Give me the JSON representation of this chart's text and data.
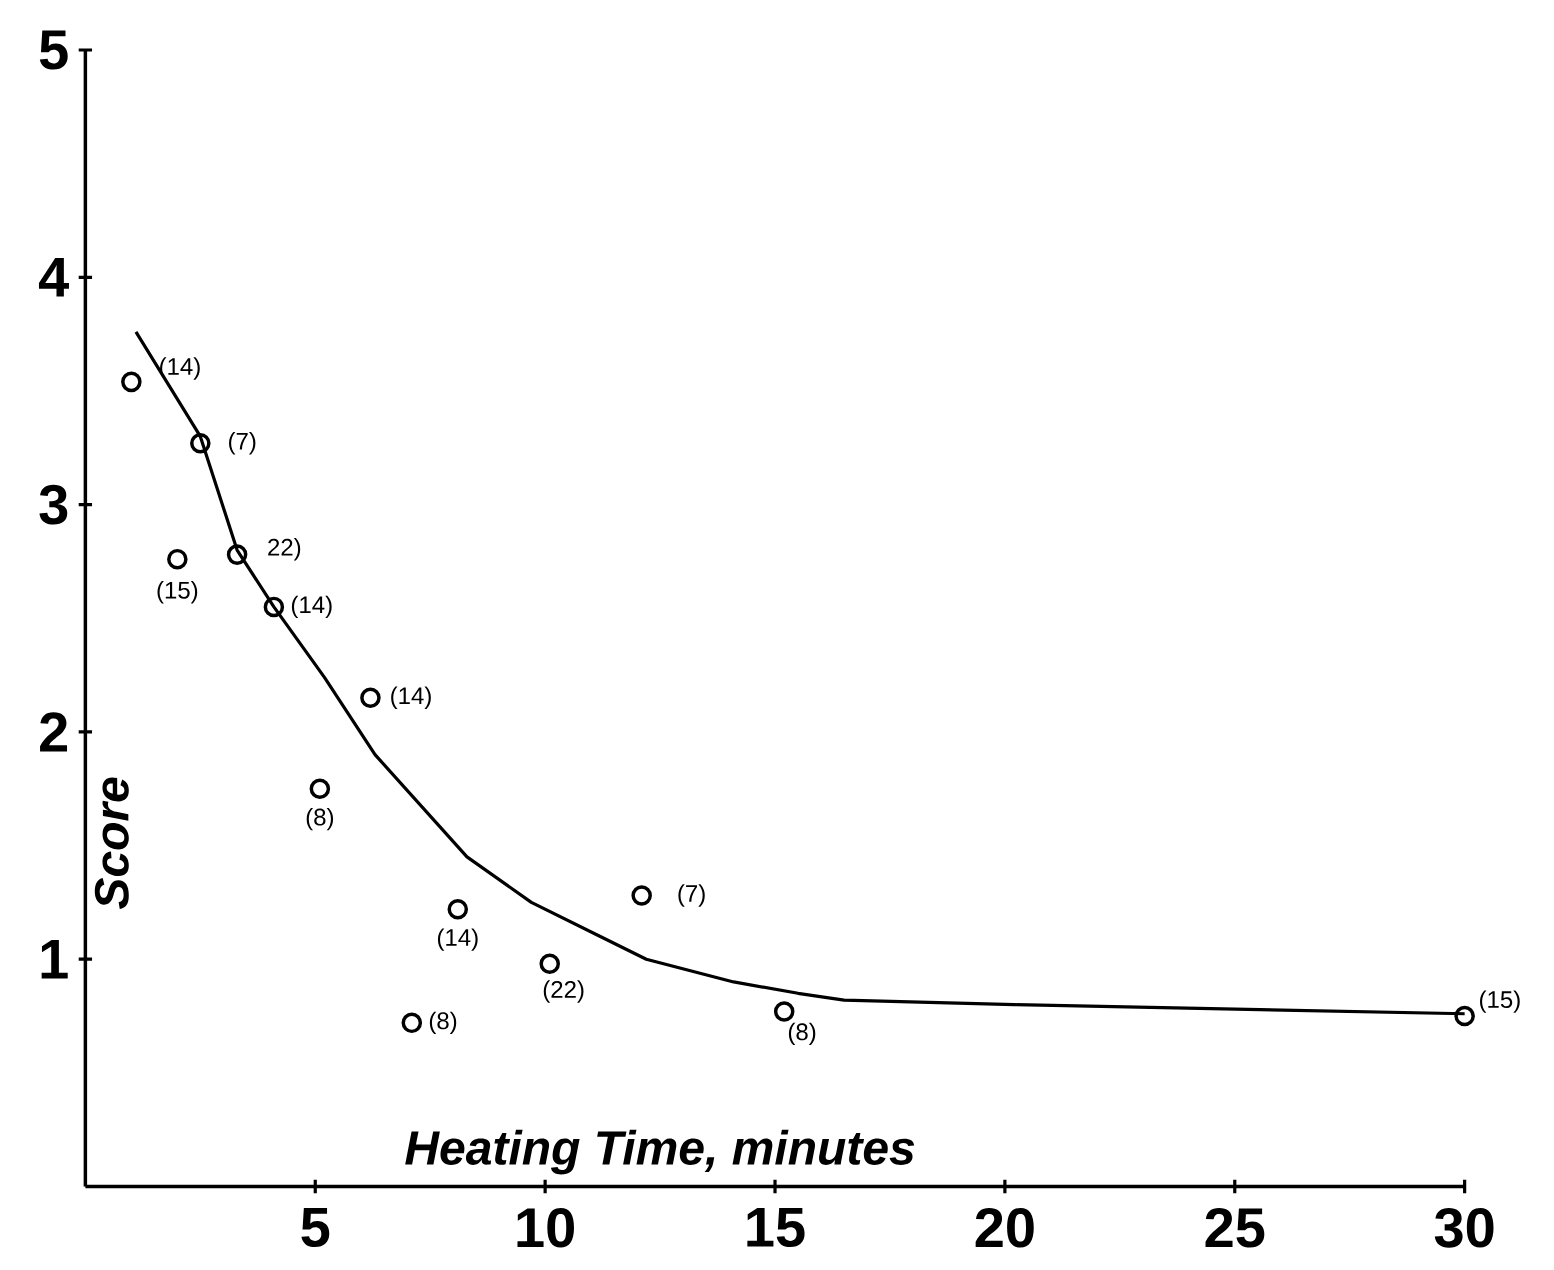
{
  "chart_data": {
    "type": "scatter",
    "xlabel": "Heating Time, minutes",
    "ylabel": "Score",
    "xlim": [
      0,
      30
    ],
    "ylim": [
      0,
      5
    ],
    "xticks": [
      5,
      10,
      15,
      20,
      25,
      30
    ],
    "yticks": [
      1,
      2,
      3,
      4,
      5
    ],
    "marker": "circle",
    "series": [
      {
        "color": "#000000",
        "x": [
          1,
          2.5,
          2,
          3.3,
          4.1,
          6.2,
          5.1,
          8.1,
          7.1,
          10.1,
          12.1,
          15.2,
          30
        ],
        "values": [
          3.54,
          3.27,
          2.76,
          2.78,
          2.55,
          2.15,
          1.75,
          1.22,
          0.72,
          0.98,
          1.28,
          0.77,
          0.75
        ]
      },
      {
        "type": "line",
        "marker": "none",
        "color": "#000000",
        "x": [
          1.1,
          2.5,
          3.3,
          4.1,
          5.2,
          6.3,
          8.3,
          9.7,
          11.2,
          12.2,
          14.1,
          15.5,
          16.5,
          20.2,
          30
        ],
        "values": [
          3.76,
          3.3,
          2.8,
          2.55,
          2.24,
          1.9,
          1.45,
          1.25,
          1.1,
          1.0,
          0.9,
          0.85,
          0.82,
          0.8,
          0.76
        ]
      }
    ],
    "annotations": [
      {
        "text": "(14)",
        "x": 1,
        "y": 3.54
      },
      {
        "text": "(7)",
        "x": 2.5,
        "y": 3.27
      },
      {
        "text": "(15)",
        "x": 2,
        "y": 2.76
      },
      {
        "text": "22)",
        "x": 3.3,
        "y": 2.78
      },
      {
        "text": "(14)",
        "x": 4.1,
        "y": 2.55
      },
      {
        "text": "(14)",
        "x": 6.2,
        "y": 2.15
      },
      {
        "text": "(8)",
        "x": 5.1,
        "y": 1.75
      },
      {
        "text": "(14)",
        "x": 8.1,
        "y": 1.22
      },
      {
        "text": "(8)",
        "x": 7.1,
        "y": 0.72
      },
      {
        "text": "(22)",
        "x": 10.1,
        "y": 0.98
      },
      {
        "text": "(7)",
        "x": 12.1,
        "y": 1.28
      },
      {
        "text": "(8)",
        "x": 15.2,
        "y": 0.77
      },
      {
        "text": "(15)",
        "x": 30,
        "y": 0.75
      }
    ]
  }
}
